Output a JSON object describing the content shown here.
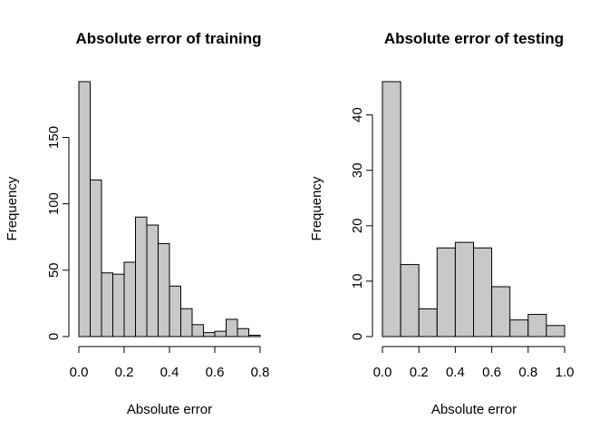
{
  "chart_data": [
    {
      "type": "bar",
      "title": "Absolute error of training",
      "xlabel": "Absolute error",
      "ylabel": "Frequency",
      "bin_edges": [
        0.0,
        0.05,
        0.1,
        0.15,
        0.2,
        0.25,
        0.3,
        0.35,
        0.4,
        0.45,
        0.5,
        0.55,
        0.6,
        0.65,
        0.7,
        0.75,
        0.8
      ],
      "values": [
        192,
        118,
        48,
        47,
        56,
        90,
        84,
        70,
        38,
        21,
        9,
        3,
        4,
        13,
        6,
        1
      ],
      "xlim": [
        0,
        0.8
      ],
      "ylim": [
        0,
        192
      ],
      "x_ticks": [
        0.0,
        0.2,
        0.4,
        0.6,
        0.8
      ],
      "x_tick_labels": [
        "0.0",
        "0.2",
        "0.4",
        "0.6",
        "0.8"
      ],
      "y_ticks": [
        0,
        50,
        100,
        150
      ],
      "y_tick_labels": [
        "0",
        "50",
        "100",
        "150"
      ],
      "grid": false,
      "bar_color": "#c8c8c8"
    },
    {
      "type": "bar",
      "title": "Absolute error of testing",
      "xlabel": "Absolute error",
      "ylabel": "Frequency",
      "bin_edges": [
        0.0,
        0.1,
        0.2,
        0.3,
        0.4,
        0.5,
        0.6,
        0.7,
        0.8,
        0.9,
        1.0
      ],
      "values": [
        46,
        13,
        5,
        16,
        17,
        16,
        9,
        3,
        4,
        2
      ],
      "xlim": [
        0,
        1.0
      ],
      "ylim": [
        0,
        46
      ],
      "x_ticks": [
        0.0,
        0.2,
        0.4,
        0.6,
        0.8,
        1.0
      ],
      "x_tick_labels": [
        "0.0",
        "0.2",
        "0.4",
        "0.6",
        "0.8",
        "1.0"
      ],
      "y_ticks": [
        0,
        10,
        20,
        30,
        40
      ],
      "y_tick_labels": [
        "0",
        "10",
        "20",
        "30",
        "40"
      ],
      "grid": false,
      "bar_color": "#c8c8c8"
    }
  ]
}
